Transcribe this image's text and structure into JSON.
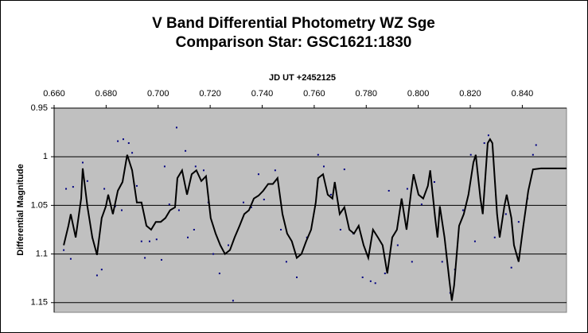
{
  "chart_data": {
    "type": "scatter",
    "title": "V Band Differential Photometry WZ Sge",
    "subtitle": "Comparison Star: GSC1621:1830",
    "x_label": "JD UT +2452125",
    "y_label": "Differential Magnitude",
    "xlim": [
      0.66,
      0.857
    ],
    "xticks": [
      {
        "value": 0.66,
        "label": "0.660"
      },
      {
        "value": 0.68,
        "label": "0.680"
      },
      {
        "value": 0.7,
        "label": "0.700"
      },
      {
        "value": 0.72,
        "label": "0.720"
      },
      {
        "value": 0.74,
        "label": "0.740"
      },
      {
        "value": 0.76,
        "label": "0.760"
      },
      {
        "value": 0.78,
        "label": "0.780"
      },
      {
        "value": 0.8,
        "label": "0.800"
      },
      {
        "value": 0.82,
        "label": "0.820"
      },
      {
        "value": 0.84,
        "label": "0.840"
      }
    ],
    "ylim": [
      0.95,
      1.16
    ],
    "yticks": [
      0.95,
      1,
      1.05,
      1.1,
      1.15
    ],
    "y_inverted": true,
    "x_axis_position": "top",
    "grid": true,
    "plot_background": "#c0c0c0",
    "series": [
      {
        "type": "scatter",
        "color": "#000080",
        "x": [
          0.6637,
          0.6646,
          0.6664,
          0.6673,
          0.671,
          0.6728,
          0.6747,
          0.6765,
          0.6783,
          0.6793,
          0.6835,
          0.6845,
          0.686,
          0.6866,
          0.6887,
          0.69,
          0.6918,
          0.6936,
          0.6949,
          0.6967,
          0.6994,
          0.7013,
          0.7025,
          0.7043,
          0.7071,
          0.708,
          0.7105,
          0.7114,
          0.7138,
          0.7144,
          0.7175,
          0.7193,
          0.7212,
          0.7236,
          0.727,
          0.7288,
          0.7328,
          0.7358,
          0.7386,
          0.7407,
          0.745,
          0.7472,
          0.7493,
          0.7533,
          0.7572,
          0.7615,
          0.7637,
          0.7664,
          0.7701,
          0.7716,
          0.775,
          0.7786,
          0.7817,
          0.7835,
          0.7872,
          0.7887,
          0.7921,
          0.7958,
          0.7976,
          0.8013,
          0.8062,
          0.8092,
          0.8123,
          0.8141,
          0.8172,
          0.8202,
          0.8218,
          0.8254,
          0.827,
          0.8294,
          0.8337,
          0.8358,
          0.8386,
          0.842,
          0.8441,
          0.8453
        ],
        "values": [
          1.096,
          1.033,
          1.105,
          1.031,
          1.006,
          1.025,
          1.083,
          1.122,
          1.116,
          1.033,
          1.051,
          0.984,
          1.055,
          0.982,
          0.986,
          0.996,
          1.03,
          1.087,
          1.104,
          1.087,
          1.085,
          1.106,
          1.01,
          1.049,
          0.97,
          1.055,
          0.994,
          1.083,
          1.075,
          1.01,
          1.014,
          1.047,
          1.1,
          1.12,
          1.091,
          1.148,
          1.047,
          1.052,
          1.018,
          1.044,
          1.014,
          1.075,
          1.108,
          1.124,
          1.083,
          0.998,
          1.01,
          1.039,
          1.075,
          1.013,
          1.079,
          1.124,
          1.128,
          1.13,
          1.12,
          1.035,
          1.091,
          1.033,
          1.108,
          1.049,
          1.026,
          1.108,
          1.14,
          1.116,
          1.055,
          0.998,
          1.087,
          0.986,
          0.978,
          1.083,
          1.059,
          1.114,
          1.067,
          1.043,
          0.998,
          0.988
        ]
      },
      {
        "type": "line",
        "color": "#000000",
        "x": [
          0.6637,
          0.6655,
          0.6664,
          0.6683,
          0.6704,
          0.671,
          0.6728,
          0.6747,
          0.6765,
          0.6783,
          0.6799,
          0.6808,
          0.6826,
          0.6845,
          0.6863,
          0.6881,
          0.69,
          0.6918,
          0.6936,
          0.6955,
          0.6973,
          0.6991,
          0.701,
          0.7028,
          0.7046,
          0.7065,
          0.7074,
          0.7092,
          0.7111,
          0.7129,
          0.7147,
          0.7166,
          0.7184,
          0.7202,
          0.7221,
          0.7239,
          0.7257,
          0.7276,
          0.7294,
          0.7313,
          0.7331,
          0.7349,
          0.7368,
          0.7386,
          0.7404,
          0.7423,
          0.7441,
          0.7459,
          0.7478,
          0.7496,
          0.7514,
          0.7533,
          0.7551,
          0.7569,
          0.7588,
          0.7606,
          0.7615,
          0.7634,
          0.7652,
          0.767,
          0.7679,
          0.7698,
          0.7716,
          0.7735,
          0.7753,
          0.7771,
          0.779,
          0.7808,
          0.7826,
          0.7845,
          0.7863,
          0.7881,
          0.79,
          0.7918,
          0.7936,
          0.7955,
          0.7973,
          0.7982,
          0.8001,
          0.8019,
          0.8037,
          0.8046,
          0.8065,
          0.8074,
          0.8083,
          0.8101,
          0.812,
          0.8129,
          0.8138,
          0.8157,
          0.8175,
          0.8193,
          0.8212,
          0.8221,
          0.8239,
          0.8248,
          0.8267,
          0.8276,
          0.8285,
          0.8303,
          0.8313,
          0.8331,
          0.834,
          0.8358,
          0.8368,
          0.8386,
          0.8404,
          0.8423,
          0.8441,
          0.8472,
          0.857
        ],
        "values": [
          1.091,
          1.071,
          1.059,
          1.083,
          1.043,
          1.012,
          1.051,
          1.083,
          1.101,
          1.063,
          1.051,
          1.039,
          1.059,
          1.035,
          1.026,
          0.998,
          1.014,
          1.047,
          1.047,
          1.071,
          1.075,
          1.067,
          1.067,
          1.063,
          1.055,
          1.052,
          1.022,
          1.014,
          1.039,
          1.018,
          1.014,
          1.025,
          1.02,
          1.063,
          1.079,
          1.091,
          1.1,
          1.096,
          1.083,
          1.071,
          1.059,
          1.055,
          1.043,
          1.04,
          1.035,
          1.028,
          1.028,
          1.022,
          1.059,
          1.079,
          1.087,
          1.104,
          1.1,
          1.087,
          1.075,
          1.047,
          1.022,
          1.018,
          1.039,
          1.043,
          1.026,
          1.059,
          1.052,
          1.075,
          1.079,
          1.071,
          1.091,
          1.104,
          1.075,
          1.083,
          1.091,
          1.12,
          1.083,
          1.075,
          1.043,
          1.075,
          1.035,
          1.018,
          1.039,
          1.043,
          1.03,
          1.014,
          1.063,
          1.083,
          1.051,
          1.083,
          1.128,
          1.148,
          1.132,
          1.071,
          1.059,
          1.039,
          1.006,
          0.998,
          1.043,
          1.059,
          0.986,
          0.982,
          0.986,
          1.059,
          1.083,
          1.051,
          1.039,
          1.063,
          1.091,
          1.108,
          1.071,
          1.035,
          1.013,
          1.012,
          1.012
        ]
      }
    ]
  }
}
